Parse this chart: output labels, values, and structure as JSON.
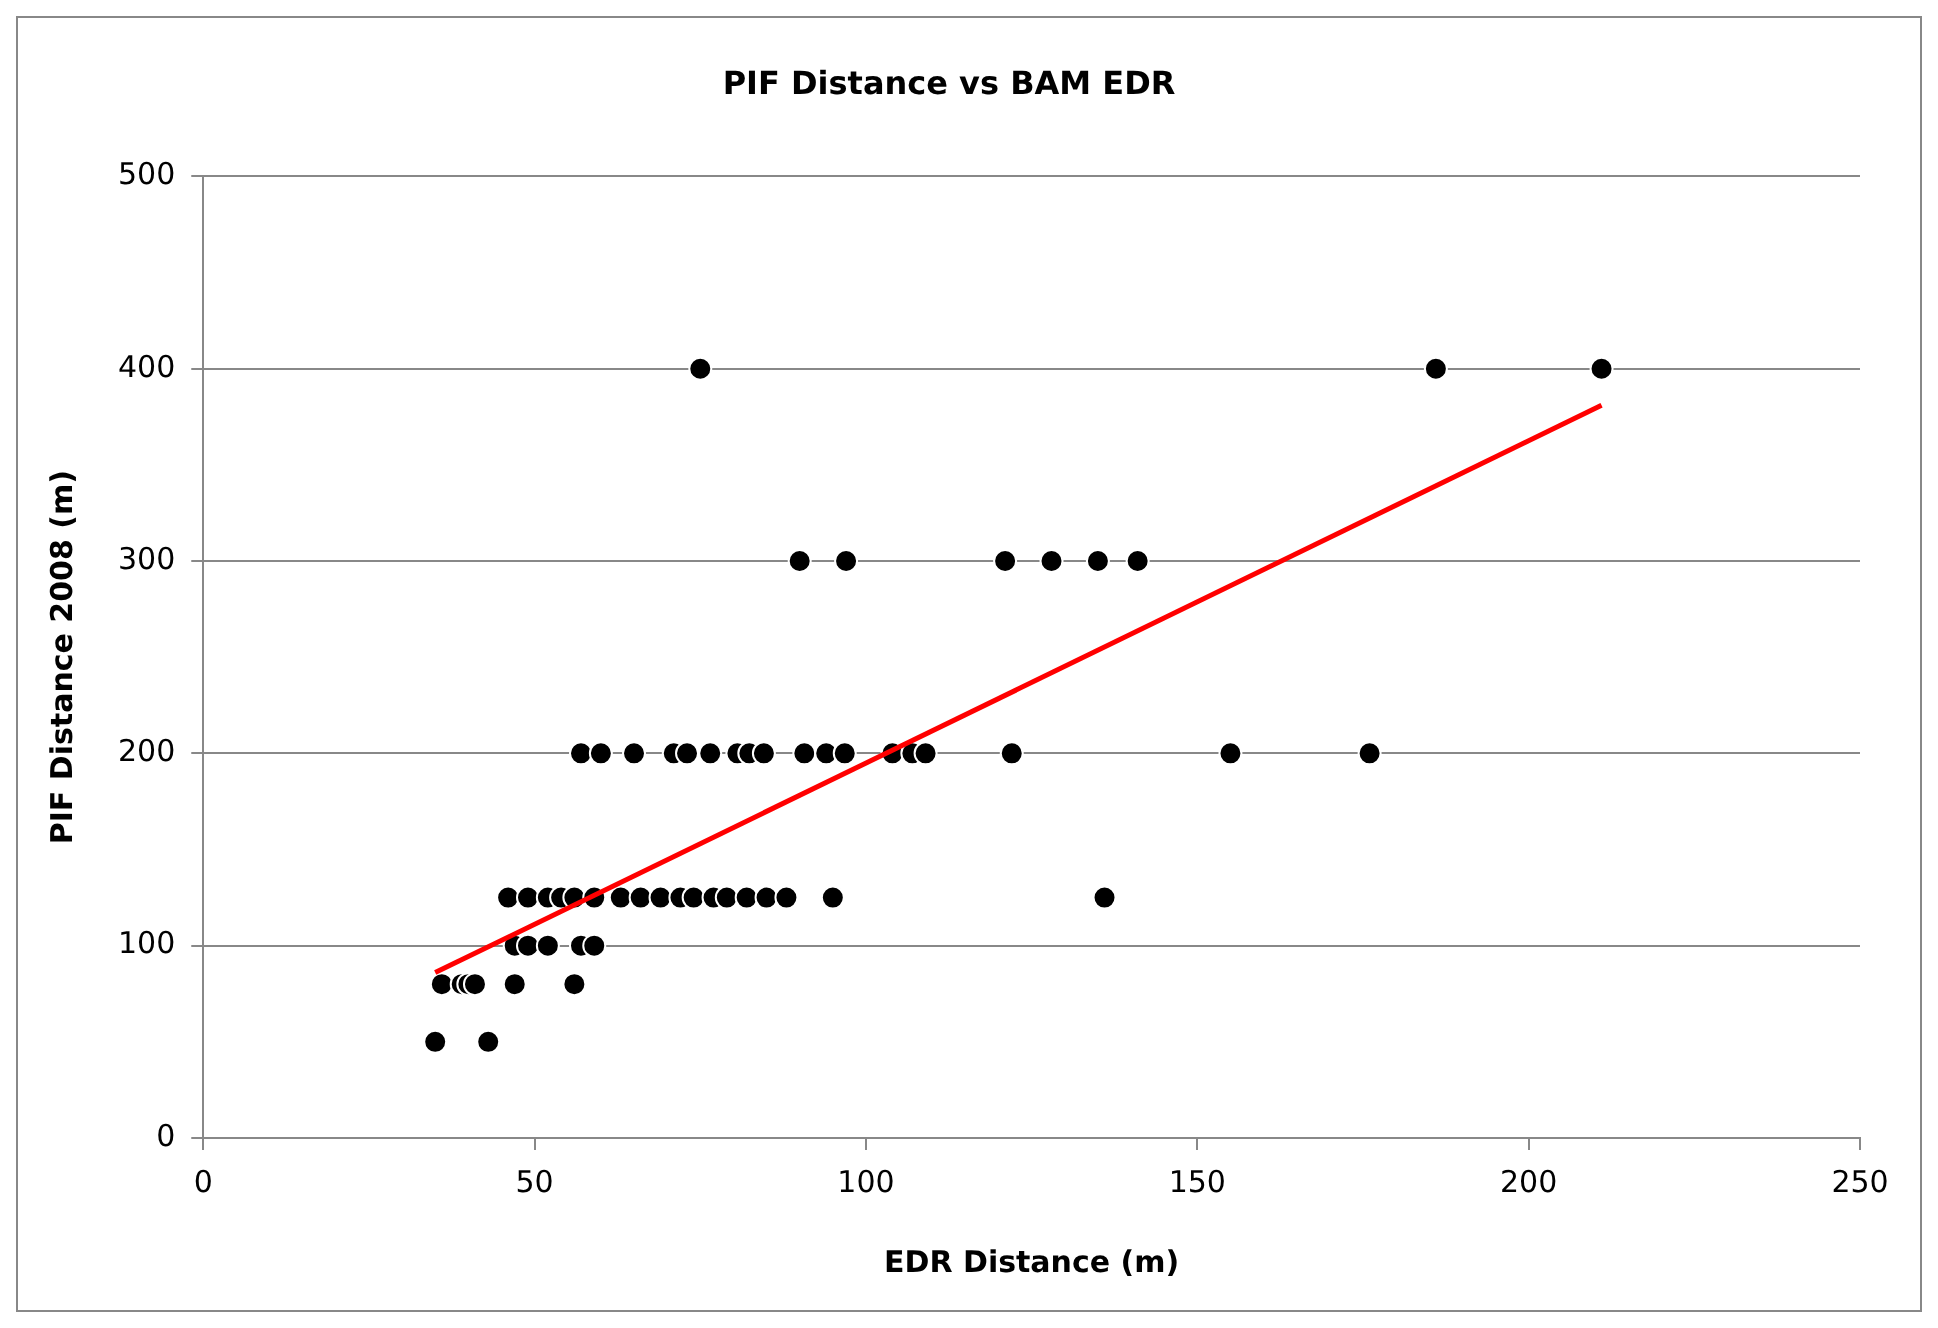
{
  "chart_data": {
    "type": "scatter",
    "title": "PIF Distance vs BAM EDR",
    "xlabel": "EDR Distance (m)",
    "ylabel": "PIF Distance 2008 (m)",
    "xlim": [
      0,
      250
    ],
    "xticks": [
      0,
      50,
      100,
      150,
      200,
      250
    ],
    "ylim": [
      0,
      500
    ],
    "yticks": [
      0,
      100,
      200,
      300,
      400,
      500
    ],
    "grid": "y",
    "legend": false,
    "series": [
      {
        "marker": "circle",
        "color": "#000000",
        "x": [
          35,
          43,
          36,
          39,
          40,
          41,
          47,
          56,
          47,
          49,
          52,
          57,
          59,
          46,
          49,
          52,
          54,
          56,
          59,
          63,
          66,
          69,
          72,
          74,
          77,
          79,
          82,
          85,
          88,
          95,
          136,
          57,
          60,
          65,
          71,
          73,
          76.5,
          80.6,
          82.4,
          84.6,
          90.7,
          94,
          96.8,
          104,
          107,
          109,
          122,
          155,
          176,
          90,
          97,
          121,
          128,
          135,
          141,
          75,
          186,
          211
        ],
        "values": [
          50,
          50,
          80,
          80,
          80,
          80,
          80,
          80,
          100,
          100,
          100,
          100,
          100,
          125,
          125,
          125,
          125,
          125,
          125,
          125,
          125,
          125,
          125,
          125,
          125,
          125,
          125,
          125,
          125,
          125,
          125,
          200,
          200,
          200,
          200,
          200,
          200,
          200,
          200,
          200,
          200,
          200,
          200,
          200,
          200,
          200,
          200,
          200,
          200,
          300,
          300,
          300,
          300,
          300,
          300,
          400,
          400,
          400
        ]
      },
      {
        "type": "line",
        "color": "#ff0000",
        "x": [
          35,
          211
        ],
        "values": [
          86,
          381
        ]
      }
    ]
  }
}
